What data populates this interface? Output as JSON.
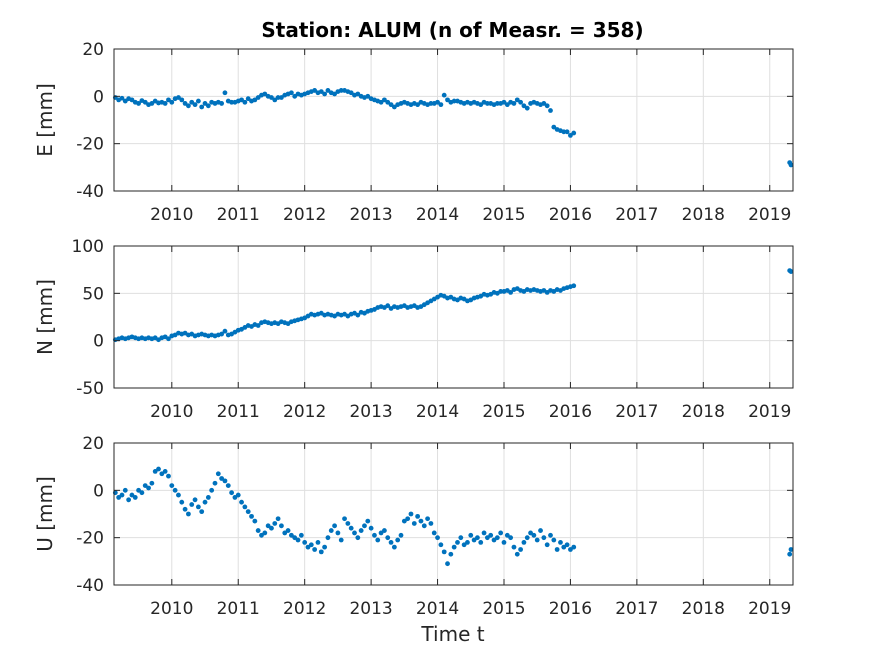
{
  "title": "Station: ALUM (n of Measr. = 358)",
  "xlabel": "Time t",
  "colors": {
    "marker": "#0072BD",
    "grid": "#dfdfdf",
    "axis": "#262626"
  },
  "chart_data": [
    {
      "type": "scatter",
      "ylabel": "E [mm]",
      "xlim": [
        2009.13,
        2019.35
      ],
      "ylim": [
        -40,
        20
      ],
      "xticks": [
        2010,
        2011,
        2012,
        2013,
        2014,
        2015,
        2016,
        2017,
        2018,
        2019
      ],
      "yticks": [
        -40,
        -20,
        0,
        20
      ],
      "grid": true,
      "series": [
        {
          "x": [
            2009.15,
            2009.2,
            2009.25,
            2009.3,
            2009.35,
            2009.4,
            2009.45,
            2009.5,
            2009.55,
            2009.6,
            2009.65,
            2009.7,
            2009.75,
            2009.8,
            2009.85,
            2009.9,
            2009.95,
            2010.0,
            2010.05,
            2010.1,
            2010.15,
            2010.2,
            2010.25,
            2010.3,
            2010.35,
            2010.4,
            2010.45,
            2010.5,
            2010.55,
            2010.6,
            2010.65,
            2010.7,
            2010.75,
            2010.8,
            2010.85,
            2010.9,
            2010.95,
            2011.0,
            2011.05,
            2011.1,
            2011.15,
            2011.2,
            2011.25,
            2011.3,
            2011.35,
            2011.4,
            2011.45,
            2011.5,
            2011.55,
            2011.6,
            2011.65,
            2011.7,
            2011.75,
            2011.8,
            2011.85,
            2011.9,
            2011.95,
            2012.0,
            2012.05,
            2012.1,
            2012.15,
            2012.2,
            2012.25,
            2012.3,
            2012.35,
            2012.4,
            2012.45,
            2012.5,
            2012.55,
            2012.6,
            2012.65,
            2012.7,
            2012.75,
            2012.8,
            2012.85,
            2012.9,
            2012.95,
            2013.0,
            2013.05,
            2013.1,
            2013.15,
            2013.2,
            2013.25,
            2013.3,
            2013.35,
            2013.4,
            2013.45,
            2013.5,
            2013.55,
            2013.6,
            2013.65,
            2013.7,
            2013.75,
            2013.8,
            2013.85,
            2013.9,
            2013.95,
            2014.0,
            2014.05,
            2014.1,
            2014.15,
            2014.2,
            2014.25,
            2014.3,
            2014.35,
            2014.4,
            2014.45,
            2014.5,
            2014.55,
            2014.6,
            2014.65,
            2014.7,
            2014.75,
            2014.8,
            2014.85,
            2014.9,
            2014.95,
            2015.0,
            2015.05,
            2015.1,
            2015.15,
            2015.2,
            2015.25,
            2015.3,
            2015.35,
            2015.4,
            2015.45,
            2015.5,
            2015.55,
            2015.6,
            2015.65,
            2015.7,
            2015.75,
            2015.8,
            2015.85,
            2015.9,
            2015.95,
            2016.0,
            2016.05,
            2019.3,
            2019.32
          ],
          "y": [
            -0.5,
            -1.5,
            -0.8,
            -2.0,
            -1.0,
            -1.5,
            -2.5,
            -3.0,
            -1.8,
            -2.5,
            -3.5,
            -3.0,
            -2.0,
            -2.8,
            -2.5,
            -3.0,
            -1.5,
            -2.5,
            -1.0,
            -0.5,
            -1.5,
            -3.0,
            -4.0,
            -2.5,
            -3.5,
            -2.0,
            -4.5,
            -3.0,
            -4.0,
            -2.5,
            -3.0,
            -2.5,
            -3.0,
            1.5,
            -2.0,
            -2.5,
            -2.5,
            -2.0,
            -1.5,
            -2.5,
            -1.0,
            -2.0,
            -1.5,
            -0.5,
            0.5,
            1.0,
            0.0,
            -0.5,
            -1.5,
            -0.5,
            -0.5,
            0.5,
            1.0,
            1.5,
            0.0,
            1.0,
            0.5,
            1.0,
            1.5,
            2.0,
            2.5,
            1.5,
            2.0,
            1.0,
            2.5,
            1.5,
            1.0,
            2.0,
            2.5,
            2.5,
            2.0,
            1.5,
            0.5,
            1.0,
            0.0,
            -0.5,
            0.0,
            -1.0,
            -1.5,
            -2.0,
            -2.5,
            -1.5,
            -2.5,
            -3.5,
            -4.5,
            -3.5,
            -3.0,
            -2.5,
            -3.0,
            -3.5,
            -3.0,
            -3.5,
            -2.5,
            -3.0,
            -3.5,
            -3.0,
            -3.0,
            -2.5,
            -3.5,
            0.5,
            -1.5,
            -2.5,
            -2.0,
            -2.0,
            -2.5,
            -3.0,
            -2.5,
            -3.0,
            -2.5,
            -3.0,
            -3.5,
            -2.5,
            -3.0,
            -3.0,
            -3.5,
            -3.0,
            -3.0,
            -2.5,
            -3.5,
            -2.5,
            -3.0,
            -1.5,
            -2.5,
            -4.0,
            -5.0,
            -3.0,
            -2.5,
            -3.0,
            -3.5,
            -3.0,
            -4.0,
            -6.0,
            -13.0,
            -14.0,
            -14.5,
            -15.0,
            -15.0,
            -16.5,
            -15.5,
            -28.0,
            -29.0
          ]
        }
      ]
    },
    {
      "type": "scatter",
      "ylabel": "N [mm]",
      "xlim": [
        2009.13,
        2019.35
      ],
      "ylim": [
        -50,
        100
      ],
      "xticks": [
        2010,
        2011,
        2012,
        2013,
        2014,
        2015,
        2016,
        2017,
        2018,
        2019
      ],
      "yticks": [
        -50,
        0,
        50,
        100
      ],
      "grid": true,
      "series": [
        {
          "x": [
            2009.15,
            2009.2,
            2009.25,
            2009.3,
            2009.35,
            2009.4,
            2009.45,
            2009.5,
            2009.55,
            2009.6,
            2009.65,
            2009.7,
            2009.75,
            2009.8,
            2009.85,
            2009.9,
            2009.95,
            2010.0,
            2010.05,
            2010.1,
            2010.15,
            2010.2,
            2010.25,
            2010.3,
            2010.35,
            2010.4,
            2010.45,
            2010.5,
            2010.55,
            2010.6,
            2010.65,
            2010.7,
            2010.75,
            2010.8,
            2010.85,
            2010.9,
            2010.95,
            2011.0,
            2011.05,
            2011.1,
            2011.15,
            2011.2,
            2011.25,
            2011.3,
            2011.35,
            2011.4,
            2011.45,
            2011.5,
            2011.55,
            2011.6,
            2011.65,
            2011.7,
            2011.75,
            2011.8,
            2011.85,
            2011.9,
            2011.95,
            2012.0,
            2012.05,
            2012.1,
            2012.15,
            2012.2,
            2012.25,
            2012.3,
            2012.35,
            2012.4,
            2012.45,
            2012.5,
            2012.55,
            2012.6,
            2012.65,
            2012.7,
            2012.75,
            2012.8,
            2012.85,
            2012.9,
            2012.95,
            2013.0,
            2013.05,
            2013.1,
            2013.15,
            2013.2,
            2013.25,
            2013.3,
            2013.35,
            2013.4,
            2013.45,
            2013.5,
            2013.55,
            2013.6,
            2013.65,
            2013.7,
            2013.75,
            2013.8,
            2013.85,
            2013.9,
            2013.95,
            2014.0,
            2014.05,
            2014.1,
            2014.15,
            2014.2,
            2014.25,
            2014.3,
            2014.35,
            2014.4,
            2014.45,
            2014.5,
            2014.55,
            2014.6,
            2014.65,
            2014.7,
            2014.75,
            2014.8,
            2014.85,
            2014.9,
            2014.95,
            2015.0,
            2015.05,
            2015.1,
            2015.15,
            2015.2,
            2015.25,
            2015.3,
            2015.35,
            2015.4,
            2015.45,
            2015.5,
            2015.55,
            2015.6,
            2015.65,
            2015.7,
            2015.75,
            2015.8,
            2015.85,
            2015.9,
            2015.95,
            2016.0,
            2016.05,
            2019.3,
            2019.32
          ],
          "y": [
            1,
            2,
            3,
            2,
            3,
            4,
            3,
            2,
            3,
            2,
            3,
            2,
            3,
            1,
            3,
            4,
            2,
            5,
            6,
            8,
            7,
            8,
            6,
            7,
            5,
            6,
            7,
            6,
            5,
            6,
            5,
            6,
            7,
            10,
            6,
            7,
            9,
            11,
            12,
            14,
            16,
            15,
            17,
            16,
            19,
            20,
            19,
            18,
            19,
            18,
            20,
            19,
            18,
            20,
            21,
            22,
            23,
            24,
            26,
            28,
            27,
            28,
            29,
            27,
            28,
            27,
            26,
            28,
            27,
            28,
            26,
            28,
            29,
            27,
            30,
            29,
            31,
            32,
            33,
            35,
            36,
            35,
            37,
            34,
            36,
            35,
            36,
            37,
            35,
            36,
            37,
            35,
            36,
            38,
            40,
            42,
            44,
            46,
            48,
            47,
            45,
            46,
            44,
            43,
            45,
            44,
            42,
            43,
            45,
            46,
            47,
            49,
            48,
            49,
            51,
            50,
            52,
            52,
            53,
            51,
            54,
            55,
            53,
            52,
            54,
            53,
            54,
            53,
            52,
            53,
            51,
            53,
            52,
            54,
            53,
            55,
            56,
            57,
            58,
            74,
            73
          ]
        }
      ]
    },
    {
      "type": "scatter",
      "ylabel": "U [mm]",
      "xlim": [
        2009.13,
        2019.35
      ],
      "ylim": [
        -40,
        20
      ],
      "xticks": [
        2010,
        2011,
        2012,
        2013,
        2014,
        2015,
        2016,
        2017,
        2018,
        2019
      ],
      "yticks": [
        -40,
        -20,
        0,
        20
      ],
      "grid": true,
      "series": [
        {
          "x": [
            2009.15,
            2009.2,
            2009.25,
            2009.3,
            2009.35,
            2009.4,
            2009.45,
            2009.5,
            2009.55,
            2009.6,
            2009.65,
            2009.7,
            2009.75,
            2009.8,
            2009.85,
            2009.9,
            2009.95,
            2010.0,
            2010.05,
            2010.1,
            2010.15,
            2010.2,
            2010.25,
            2010.3,
            2010.35,
            2010.4,
            2010.45,
            2010.5,
            2010.55,
            2010.6,
            2010.65,
            2010.7,
            2010.75,
            2010.8,
            2010.85,
            2010.9,
            2010.95,
            2011.0,
            2011.05,
            2011.1,
            2011.15,
            2011.2,
            2011.25,
            2011.3,
            2011.35,
            2011.4,
            2011.45,
            2011.5,
            2011.55,
            2011.6,
            2011.65,
            2011.7,
            2011.75,
            2011.8,
            2011.85,
            2011.9,
            2011.95,
            2012.0,
            2012.05,
            2012.1,
            2012.15,
            2012.2,
            2012.25,
            2012.3,
            2012.35,
            2012.4,
            2012.45,
            2012.5,
            2012.55,
            2012.6,
            2012.65,
            2012.7,
            2012.75,
            2012.8,
            2012.85,
            2012.9,
            2012.95,
            2013.0,
            2013.05,
            2013.1,
            2013.15,
            2013.2,
            2013.25,
            2013.3,
            2013.35,
            2013.4,
            2013.45,
            2013.5,
            2013.55,
            2013.6,
            2013.65,
            2013.7,
            2013.75,
            2013.8,
            2013.85,
            2013.9,
            2013.95,
            2014.0,
            2014.05,
            2014.1,
            2014.15,
            2014.2,
            2014.25,
            2014.3,
            2014.35,
            2014.4,
            2014.45,
            2014.5,
            2014.55,
            2014.6,
            2014.65,
            2014.7,
            2014.75,
            2014.8,
            2014.85,
            2014.9,
            2014.95,
            2015.0,
            2015.05,
            2015.1,
            2015.15,
            2015.2,
            2015.25,
            2015.3,
            2015.35,
            2015.4,
            2015.45,
            2015.5,
            2015.55,
            2015.6,
            2015.65,
            2015.7,
            2015.75,
            2015.8,
            2015.85,
            2015.9,
            2015.95,
            2016.0,
            2016.05,
            2019.3,
            2019.32
          ],
          "y": [
            -1,
            -3,
            -2,
            0,
            -4,
            -2,
            -3,
            0,
            -1,
            2,
            1,
            3,
            8,
            9,
            7,
            8,
            6,
            2,
            0,
            -2,
            -5,
            -8,
            -10,
            -6,
            -4,
            -7,
            -9,
            -5,
            -3,
            0,
            3,
            7,
            5,
            4,
            2,
            -1,
            -3,
            -2,
            -5,
            -7,
            -9,
            -11,
            -13,
            -17,
            -19,
            -18,
            -15,
            -16,
            -14,
            -12,
            -15,
            -18,
            -17,
            -19,
            -20,
            -21,
            -19,
            -22,
            -24,
            -23,
            -25,
            -22,
            -26,
            -24,
            -20,
            -17,
            -15,
            -18,
            -21,
            -12,
            -14,
            -16,
            -18,
            -20,
            -17,
            -15,
            -13,
            -16,
            -19,
            -21,
            -18,
            -17,
            -20,
            -22,
            -24,
            -21,
            -19,
            -13,
            -12,
            -10,
            -14,
            -11,
            -13,
            -15,
            -12,
            -14,
            -18,
            -20,
            -23,
            -26,
            -31,
            -27,
            -24,
            -22,
            -20,
            -23,
            -22,
            -19,
            -21,
            -20,
            -22,
            -18,
            -20,
            -19,
            -21,
            -20,
            -18,
            -22,
            -19,
            -20,
            -24,
            -27,
            -25,
            -22,
            -20,
            -18,
            -19,
            -21,
            -17,
            -20,
            -23,
            -19,
            -21,
            -25,
            -22,
            -24,
            -23,
            -25,
            -24,
            -27,
            -25
          ]
        }
      ]
    }
  ]
}
